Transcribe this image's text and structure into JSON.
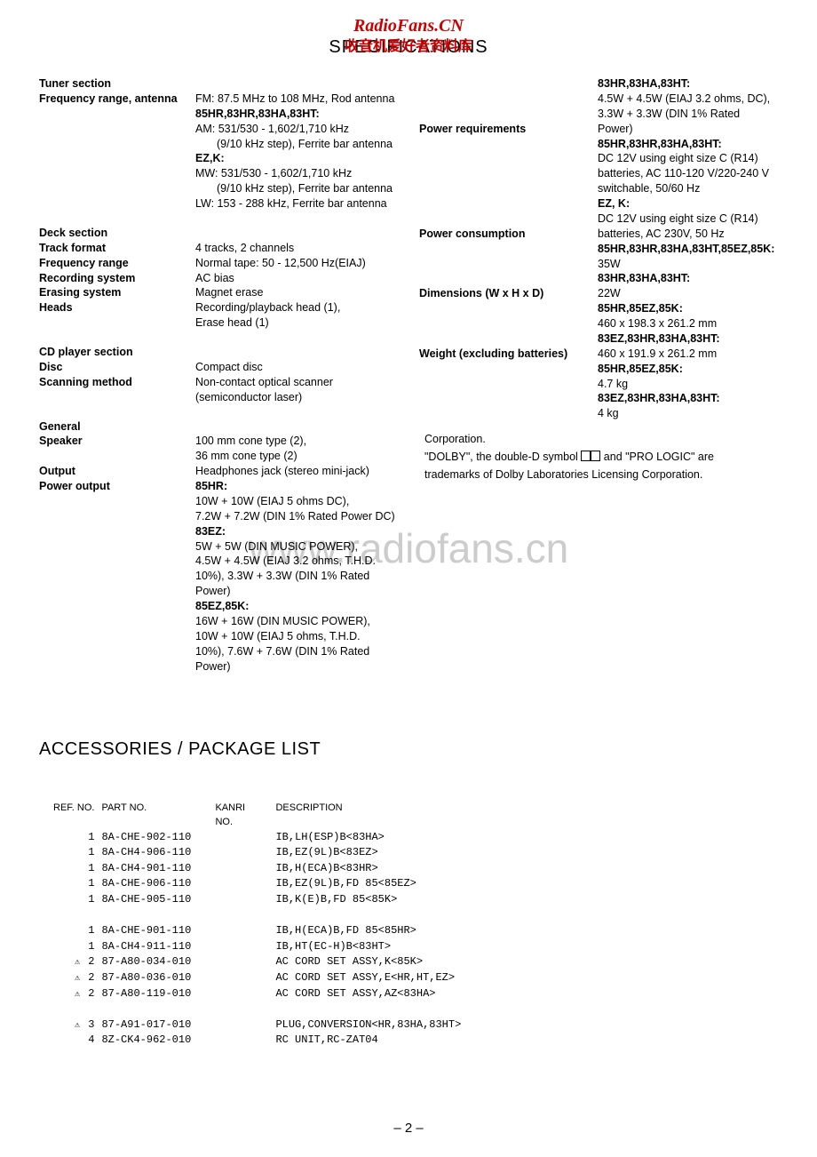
{
  "watermarks": {
    "top1": "RadioFans.CN",
    "top2": "收音机爱好者资料库",
    "big": "www.radiofans.cn"
  },
  "title": "SPECIFICATIONS",
  "pageNumber": "– 2 –",
  "left": {
    "tuner_head": "Tuner section",
    "freq_label": "Frequency range, antenna",
    "freq_v1": "FM: 87.5 MHz to 108 MHz, Rod antenna",
    "freq_v2": "85HR,83HR,83HA,83HT:",
    "freq_v3": "AM: 531/530 - 1,602/1,710 kHz",
    "freq_v4": "(9/10 kHz step), Ferrite bar antenna",
    "freq_v5": "EZ,K:",
    "freq_v6": "MW: 531/530 - 1,602/1,710 kHz",
    "freq_v7": "(9/10 kHz step), Ferrite bar antenna",
    "freq_v8": "LW: 153 - 288 kHz, Ferrite bar antenna",
    "deck_head": "Deck section",
    "track_l": "Track format",
    "track_v": "4 tracks, 2 channels",
    "freqrange_l": "Frequency range",
    "freqrange_v": "Normal tape: 50 - 12,500 Hz(EIAJ)",
    "rec_l": "Recording system",
    "rec_v": "AC bias",
    "erase_l": "Erasing system",
    "erase_v": "Magnet erase",
    "heads_l": "Heads",
    "heads_v1": "Recording/playback head (1),",
    "heads_v2": "Erase head (1)",
    "cd_head": "CD player section",
    "disc_l": "Disc",
    "disc_v": "Compact disc",
    "scan_l": "Scanning method",
    "scan_v1": "Non-contact optical scanner",
    "scan_v2": "(semiconductor laser)",
    "gen_head": "General",
    "spk_l": "Speaker",
    "spk_v1": "100 mm cone type (2),",
    "spk_v2": "36 mm cone type (2)",
    "out_l": "Output",
    "out_v": "Headphones jack (stereo mini-jack)",
    "pow_l": "Power output",
    "pow_v1": "85HR:",
    "pow_v2": "10W + 10W (EIAJ 5 ohms DC),",
    "pow_v3": "7.2W + 7.2W (DIN 1% Rated Power DC)",
    "pow_v4": "83EZ:",
    "pow_v5": "5W + 5W (DIN MUSIC POWER),",
    "pow_v6": "4.5W + 4.5W (EIAJ 3.2 ohms, T.H.D.",
    "pow_v7": "10%), 3.3W + 3.3W (DIN 1% Rated",
    "pow_v8": "Power)",
    "pow_v9": "85EZ,85K:",
    "pow_v10": "16W + 16W (DIN MUSIC POWER),",
    "pow_v11": "10W + 10W (EIAJ 5 ohms, T.H.D.",
    "pow_v12": "10%), 7.6W + 7.6W (DIN 1% Rated",
    "pow_v13": "Power)"
  },
  "right": {
    "r1": "83HR,83HA,83HT:",
    "r2": "4.5W + 4.5W (EIAJ 3.2 ohms, DC),",
    "r3": "3.3W + 3.3W (DIN 1% Rated Power)",
    "preq_l": "Power requirements",
    "preq_v1": "85HR,83HR,83HA,83HT:",
    "preq_v2": "DC 12V using eight size C (R14)",
    "preq_v3": "batteries, AC 110-120 V/220-240 V",
    "preq_v4": "switchable, 50/60 Hz",
    "preq_v5": "EZ, K:",
    "preq_v6": "DC 12V using eight size C (R14)",
    "preq_v7": "batteries, AC 230V, 50 Hz",
    "pcon_l": "Power consumption",
    "pcon_v1": "85HR,83HR,83HA,83HT,85EZ,85K:",
    "pcon_v2": "35W",
    "pcon_v3": "83HR,83HA,83HT:",
    "pcon_v4": "22W",
    "dim_l": "Dimensions (W x H x D)",
    "dim_v1": "85HR,85EZ,85K:",
    "dim_v2": "460 x 198.3 x 261.2 mm",
    "dim_v3": "83EZ,83HR,83HA,83HT:",
    "dim_v4": "460 x 191.9 x 261.2 mm",
    "wt_l": "Weight (excluding batteries)",
    "wt_v1": "85HR,85EZ,85K:",
    "wt_v2": "4.7 kg",
    "wt_v3": "83EZ,83HR,83HA,83HT:",
    "wt_v4": "4 kg",
    "tm1": "Corporation.",
    "tm2a": "\"DOLBY\", the double-D symbol ",
    "tm2b": " and \"PRO LOGIC\" are",
    "tm3": "trademarks of Dolby Laboratories Licensing Corporation."
  },
  "acc_title": "ACCESSORIES / PACKAGE  LIST",
  "acc_headers": {
    "ref": "REF. NO.",
    "part": "PART NO.",
    "kanri": "KANRI",
    "kanri2": "NO.",
    "desc": "DESCRIPTION"
  },
  "acc_rows": [
    {
      "warn": false,
      "ref": "1",
      "part": "8A-CHE-902-110",
      "kanri": "",
      "desc": "IB,LH(ESP)B<83HA>"
    },
    {
      "warn": false,
      "ref": "1",
      "part": "8A-CH4-906-110",
      "kanri": "",
      "desc": "IB,EZ(9L)B<83EZ>"
    },
    {
      "warn": false,
      "ref": "1",
      "part": "8A-CH4-901-110",
      "kanri": "",
      "desc": "IB,H(ECA)B<83HR>"
    },
    {
      "warn": false,
      "ref": "1",
      "part": "8A-CHE-906-110",
      "kanri": "",
      "desc": "IB,EZ(9L)B,FD 85<85EZ>"
    },
    {
      "warn": false,
      "ref": "1",
      "part": "8A-CHE-905-110",
      "kanri": "",
      "desc": "IB,K(E)B,FD 85<85K>"
    },
    {
      "gap": true
    },
    {
      "warn": false,
      "ref": "1",
      "part": "8A-CHE-901-110",
      "kanri": "",
      "desc": "IB,H(ECA)B,FD 85<85HR>"
    },
    {
      "warn": false,
      "ref": "1",
      "part": "8A-CH4-911-110",
      "kanri": "",
      "desc": "IB,HT(EC-H)B<83HT>"
    },
    {
      "warn": true,
      "ref": "2",
      "part": "87-A80-034-010",
      "kanri": "",
      "desc": "AC CORD SET ASSY,K<85K>"
    },
    {
      "warn": true,
      "ref": "2",
      "part": "87-A80-036-010",
      "kanri": "",
      "desc": "AC CORD SET ASSY,E<HR,HT,EZ>"
    },
    {
      "warn": true,
      "ref": "2",
      "part": "87-A80-119-010",
      "kanri": "",
      "desc": "AC CORD SET ASSY,AZ<83HA>"
    },
    {
      "gap": true
    },
    {
      "warn": true,
      "ref": "3",
      "part": "87-A91-017-010",
      "kanri": "",
      "desc": "PLUG,CONVERSION<HR,83HA,83HT>"
    },
    {
      "warn": false,
      "ref": "4",
      "part": "8Z-CK4-962-010",
      "kanri": "",
      "desc": "RC UNIT,RC-ZAT04"
    }
  ]
}
